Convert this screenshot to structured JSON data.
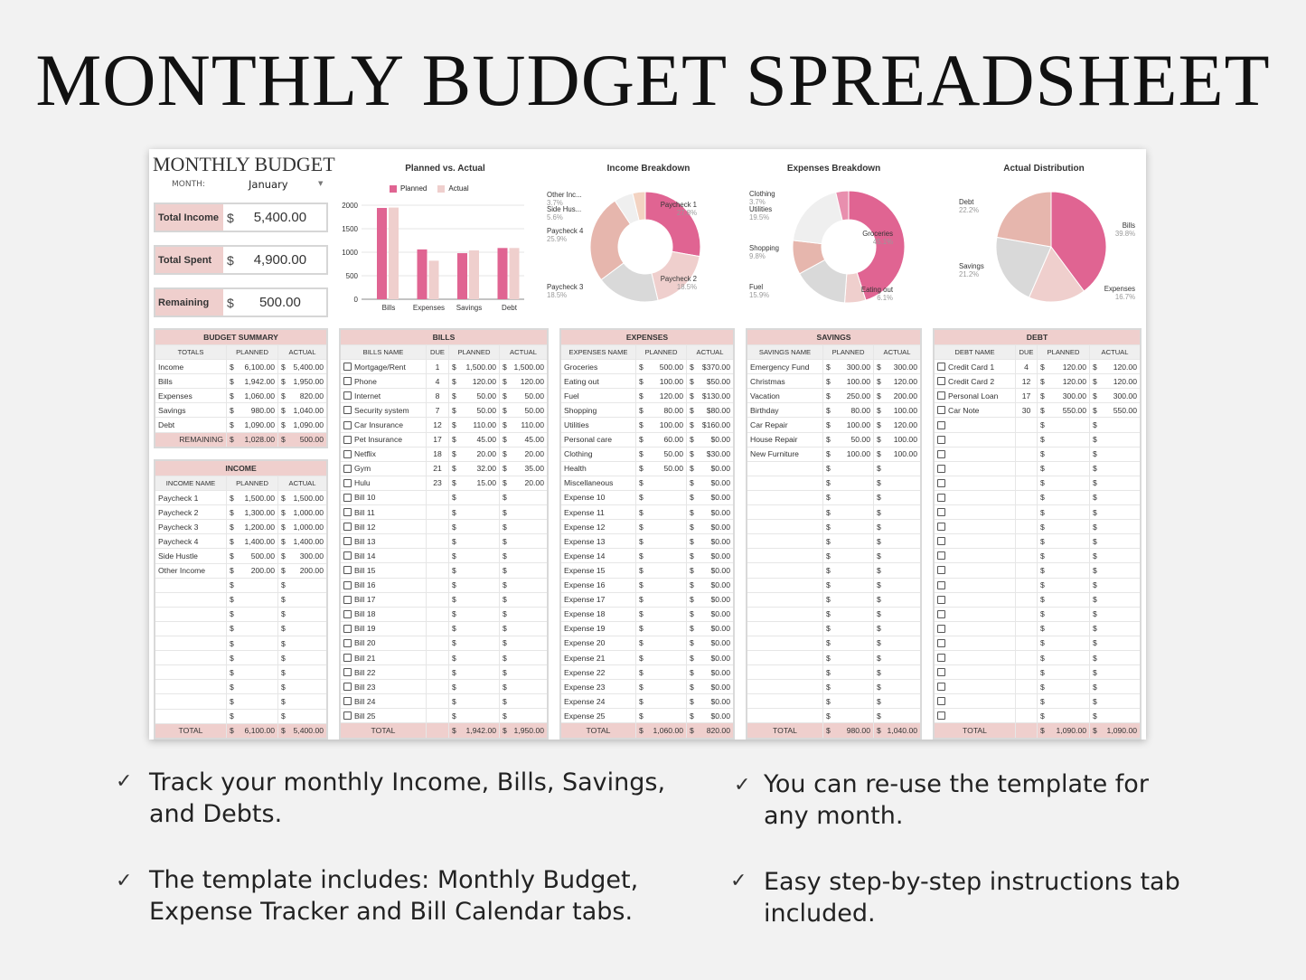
{
  "headline": "MONTHLY BUDGET SPREADSHEET",
  "sheet": {
    "title": "MONTHLY BUDGET",
    "month_label": "MONTH:",
    "month_value": "January",
    "kpis": [
      {
        "label": "Total Income",
        "currency": "$",
        "value": "5,400.00"
      },
      {
        "label": "Total Spent",
        "currency": "$",
        "value": "4,900.00"
      },
      {
        "label": "Remaining",
        "currency": "$",
        "value": "500.00"
      }
    ]
  },
  "colors": {
    "dark_pink": "#e06492",
    "light_pink": "#efcfcd",
    "gray": "#d9d9d9",
    "rose": "#e6b6ad",
    "light_gray": "#efefef",
    "peach": "#f3d3c2"
  },
  "chart_data": [
    {
      "type": "bar",
      "title": "Planned vs. Actual",
      "categories": [
        "Bills",
        "Expenses",
        "Savings",
        "Debt"
      ],
      "series": [
        {
          "name": "Planned",
          "values": [
            1942,
            1060,
            980,
            1090
          ]
        },
        {
          "name": "Actual",
          "values": [
            1950,
            820,
            1040,
            1090
          ]
        }
      ],
      "ylim": [
        0,
        2000
      ],
      "yticks": [
        "0",
        "500",
        "1000",
        "1500",
        "2000"
      ],
      "legend": "top"
    },
    {
      "type": "pie",
      "title": "Income Breakdown",
      "donut": true,
      "slices": [
        {
          "label": "Paycheck 1",
          "pct": "27.8%",
          "value": 27.8
        },
        {
          "label": "Paycheck 2",
          "pct": "18.5%",
          "value": 18.5
        },
        {
          "label": "Paycheck 3",
          "pct": "18.5%",
          "value": 18.5
        },
        {
          "label": "Paycheck 4",
          "pct": "25.9%",
          "value": 25.9
        },
        {
          "label": "Side Hus...",
          "pct": "5.6%",
          "value": 5.6
        },
        {
          "label": "Other Inc...",
          "pct": "3.7%",
          "value": 3.7
        }
      ]
    },
    {
      "type": "pie",
      "title": "Expenses Breakdown",
      "donut": true,
      "slices": [
        {
          "label": "Groceries",
          "pct": "45.1%",
          "value": 45.1
        },
        {
          "label": "Eating out",
          "pct": "6.1%",
          "value": 6.1
        },
        {
          "label": "Fuel",
          "pct": "15.9%",
          "value": 15.9
        },
        {
          "label": "Shopping",
          "pct": "9.8%",
          "value": 9.8
        },
        {
          "label": "Utilities",
          "pct": "19.5%",
          "value": 19.5
        },
        {
          "label": "Clothing",
          "pct": "3.7%",
          "value": 3.7
        }
      ]
    },
    {
      "type": "pie",
      "title": "Actual Distribution",
      "donut": false,
      "slices": [
        {
          "label": "Bills",
          "pct": "39.8%",
          "value": 39.8
        },
        {
          "label": "Expenses",
          "pct": "16.7%",
          "value": 16.7
        },
        {
          "label": "Savings",
          "pct": "21.2%",
          "value": 21.2
        },
        {
          "label": "Debt",
          "pct": "22.2%",
          "value": 22.2
        }
      ]
    }
  ],
  "tables": {
    "summary": {
      "title": "BUDGET SUMMARY",
      "headers": [
        "TOTALS",
        "PLANNED",
        "ACTUAL"
      ],
      "rows": [
        [
          "Income",
          "6,100.00",
          "5,400.00"
        ],
        [
          "Bills",
          "1,942.00",
          "1,950.00"
        ],
        [
          "Expenses",
          "1,060.00",
          "820.00"
        ],
        [
          "Savings",
          "980.00",
          "1,040.00"
        ],
        [
          "Debt",
          "1,090.00",
          "1,090.00"
        ]
      ],
      "total": [
        "REMAINING",
        "1,028.00",
        "500.00"
      ]
    },
    "income": {
      "title": "INCOME",
      "headers": [
        "INCOME NAME",
        "PLANNED",
        "ACTUAL"
      ],
      "rows": [
        [
          "Paycheck 1",
          "1,500.00",
          "1,500.00"
        ],
        [
          "Paycheck 2",
          "1,300.00",
          "1,000.00"
        ],
        [
          "Paycheck 3",
          "1,200.00",
          "1,000.00"
        ],
        [
          "Paycheck 4",
          "1,400.00",
          "1,400.00"
        ],
        [
          "Side Hustle",
          "500.00",
          "300.00"
        ],
        [
          "Other Income",
          "200.00",
          "200.00"
        ],
        [
          "",
          "",
          ""
        ],
        [
          "",
          "",
          ""
        ],
        [
          "",
          "",
          ""
        ],
        [
          "",
          "",
          ""
        ],
        [
          "",
          "",
          ""
        ],
        [
          "",
          "",
          ""
        ],
        [
          "",
          "",
          ""
        ],
        [
          "",
          "",
          ""
        ],
        [
          "",
          "",
          ""
        ],
        [
          "",
          "",
          ""
        ]
      ],
      "total": [
        "TOTAL",
        "6,100.00",
        "5,400.00"
      ]
    },
    "bills": {
      "title": "BILLS",
      "headers": [
        "BILLS NAME",
        "DUE",
        "PLANNED",
        "ACTUAL"
      ],
      "rows": [
        [
          "Mortgage/Rent",
          "1",
          "1,500.00",
          "1,500.00"
        ],
        [
          "Phone",
          "4",
          "120.00",
          "120.00"
        ],
        [
          "Internet",
          "8",
          "50.00",
          "50.00"
        ],
        [
          "Security system",
          "7",
          "50.00",
          "50.00"
        ],
        [
          "Car Insurance",
          "12",
          "110.00",
          "110.00"
        ],
        [
          "Pet Insurance",
          "17",
          "45.00",
          "45.00"
        ],
        [
          "Netflix",
          "18",
          "20.00",
          "20.00"
        ],
        [
          "Gym",
          "21",
          "32.00",
          "35.00"
        ],
        [
          "Hulu",
          "23",
          "15.00",
          "20.00"
        ],
        [
          "Bill 10",
          "",
          "",
          ""
        ],
        [
          "Bill 11",
          "",
          "",
          ""
        ],
        [
          "Bill 12",
          "",
          "",
          ""
        ],
        [
          "Bill 13",
          "",
          "",
          ""
        ],
        [
          "Bill 14",
          "",
          "",
          ""
        ],
        [
          "Bill 15",
          "",
          "",
          ""
        ],
        [
          "Bill 16",
          "",
          "",
          ""
        ],
        [
          "Bill 17",
          "",
          "",
          ""
        ],
        [
          "Bill 18",
          "",
          "",
          ""
        ],
        [
          "Bill 19",
          "",
          "",
          ""
        ],
        [
          "Bill 20",
          "",
          "",
          ""
        ],
        [
          "Bill 21",
          "",
          "",
          ""
        ],
        [
          "Bill 22",
          "",
          "",
          ""
        ],
        [
          "Bill 23",
          "",
          "",
          ""
        ],
        [
          "Bill 24",
          "",
          "",
          ""
        ],
        [
          "Bill 25",
          "",
          "",
          ""
        ]
      ],
      "total": [
        "TOTAL",
        "",
        "1,942.00",
        "1,950.00"
      ]
    },
    "expenses": {
      "title": "EXPENSES",
      "headers": [
        "EXPENSES NAME",
        "PLANNED",
        "ACTUAL"
      ],
      "rows": [
        [
          "Groceries",
          "500.00",
          "$370.00"
        ],
        [
          "Eating out",
          "100.00",
          "$50.00"
        ],
        [
          "Fuel",
          "120.00",
          "$130.00"
        ],
        [
          "Shopping",
          "80.00",
          "$80.00"
        ],
        [
          "Utilities",
          "100.00",
          "$160.00"
        ],
        [
          "Personal care",
          "60.00",
          "$0.00"
        ],
        [
          "Clothing",
          "50.00",
          "$30.00"
        ],
        [
          "Health",
          "50.00",
          "$0.00"
        ],
        [
          "Miscellaneous",
          "",
          "$0.00"
        ],
        [
          "Expense 10",
          "",
          "$0.00"
        ],
        [
          "Expense 11",
          "",
          "$0.00"
        ],
        [
          "Expense 12",
          "",
          "$0.00"
        ],
        [
          "Expense 13",
          "",
          "$0.00"
        ],
        [
          "Expense 14",
          "",
          "$0.00"
        ],
        [
          "Expense 15",
          "",
          "$0.00"
        ],
        [
          "Expense 16",
          "",
          "$0.00"
        ],
        [
          "Expense 17",
          "",
          "$0.00"
        ],
        [
          "Expense 18",
          "",
          "$0.00"
        ],
        [
          "Expense 19",
          "",
          "$0.00"
        ],
        [
          "Expense 20",
          "",
          "$0.00"
        ],
        [
          "Expense 21",
          "",
          "$0.00"
        ],
        [
          "Expense 22",
          "",
          "$0.00"
        ],
        [
          "Expense 23",
          "",
          "$0.00"
        ],
        [
          "Expense 24",
          "",
          "$0.00"
        ],
        [
          "Expense 25",
          "",
          "$0.00"
        ]
      ],
      "total": [
        "TOTAL",
        "1,060.00",
        "820.00"
      ]
    },
    "savings": {
      "title": "SAVINGS",
      "headers": [
        "SAVINGS NAME",
        "PLANNED",
        "ACTUAL"
      ],
      "rows": [
        [
          "Emergency Fund",
          "300.00",
          "300.00"
        ],
        [
          "Christmas",
          "100.00",
          "120.00"
        ],
        [
          "Vacation",
          "250.00",
          "200.00"
        ],
        [
          "Birthday",
          "80.00",
          "100.00"
        ],
        [
          "Car Repair",
          "100.00",
          "120.00"
        ],
        [
          "House Repair",
          "50.00",
          "100.00"
        ],
        [
          "New Furniture",
          "100.00",
          "100.00"
        ],
        [
          "",
          "",
          ""
        ],
        [
          "",
          "",
          ""
        ],
        [
          "",
          "",
          ""
        ],
        [
          "",
          "",
          ""
        ],
        [
          "",
          "",
          ""
        ],
        [
          "",
          "",
          ""
        ],
        [
          "",
          "",
          ""
        ],
        [
          "",
          "",
          ""
        ],
        [
          "",
          "",
          ""
        ],
        [
          "",
          "",
          ""
        ],
        [
          "",
          "",
          ""
        ],
        [
          "",
          "",
          ""
        ],
        [
          "",
          "",
          ""
        ],
        [
          "",
          "",
          ""
        ],
        [
          "",
          "",
          ""
        ],
        [
          "",
          "",
          ""
        ],
        [
          "",
          "",
          ""
        ],
        [
          "",
          "",
          ""
        ]
      ],
      "total": [
        "TOTAL",
        "980.00",
        "1,040.00"
      ]
    },
    "debt": {
      "title": "DEBT",
      "headers": [
        "DEBT NAME",
        "DUE",
        "PLANNED",
        "ACTUAL"
      ],
      "rows": [
        [
          "Credit Card 1",
          "4",
          "120.00",
          "120.00"
        ],
        [
          "Credit Card 2",
          "12",
          "120.00",
          "120.00"
        ],
        [
          "Personal Loan",
          "17",
          "300.00",
          "300.00"
        ],
        [
          "Car Note",
          "30",
          "550.00",
          "550.00"
        ],
        [
          "",
          "",
          "",
          ""
        ],
        [
          "",
          "",
          "",
          ""
        ],
        [
          "",
          "",
          "",
          ""
        ],
        [
          "",
          "",
          "",
          ""
        ],
        [
          "",
          "",
          "",
          ""
        ],
        [
          "",
          "",
          "",
          ""
        ],
        [
          "",
          "",
          "",
          ""
        ],
        [
          "",
          "",
          "",
          ""
        ],
        [
          "",
          "",
          "",
          ""
        ],
        [
          "",
          "",
          "",
          ""
        ],
        [
          "",
          "",
          "",
          ""
        ],
        [
          "",
          "",
          "",
          ""
        ],
        [
          "",
          "",
          "",
          ""
        ],
        [
          "",
          "",
          "",
          ""
        ],
        [
          "",
          "",
          "",
          ""
        ],
        [
          "",
          "",
          "",
          ""
        ],
        [
          "",
          "",
          "",
          ""
        ],
        [
          "",
          "",
          "",
          ""
        ],
        [
          "",
          "",
          "",
          ""
        ],
        [
          "",
          "",
          "",
          ""
        ],
        [
          "",
          "",
          "",
          ""
        ]
      ],
      "total": [
        "TOTAL",
        "",
        "1,090.00",
        "1,090.00"
      ]
    }
  },
  "currency": "$",
  "features": [
    "Track your monthly Income, Bills, Savings, and Debts.",
    "You can re-use the template for any month.",
    "The template includes: Monthly Budget, Expense Tracker and Bill Calendar tabs.",
    "Easy step-by-step instructions tab included."
  ],
  "check_mark": "✓"
}
